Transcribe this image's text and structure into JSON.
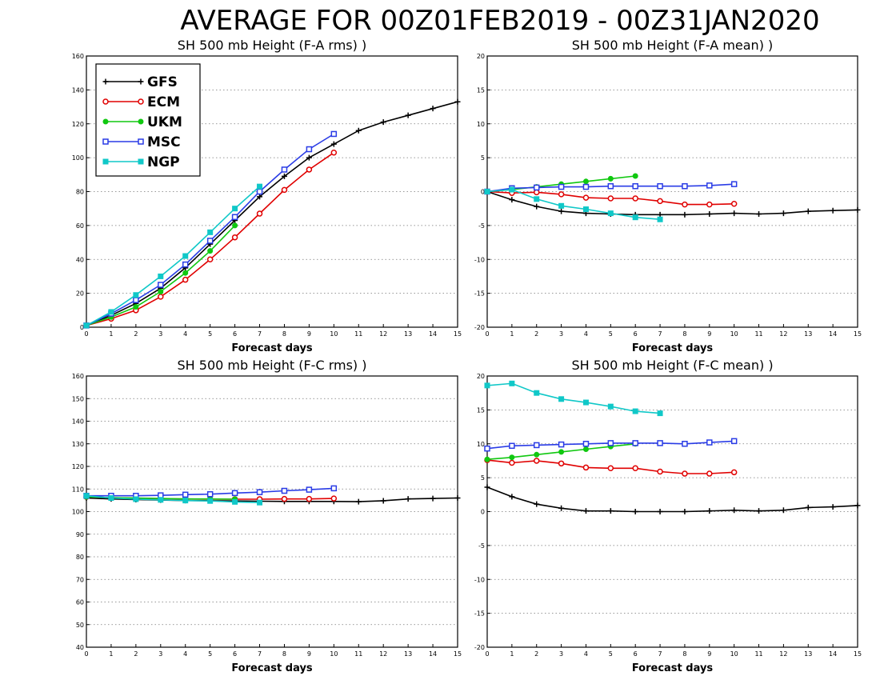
{
  "title": "AVERAGE FOR 00Z01FEB2019 - 00Z31JAN2020",
  "colors": {
    "GFS": "#000000",
    "ECM": "#e00000",
    "UKM": "#10c810",
    "MSC": "#2a3ce6",
    "NGP": "#10c8c8"
  },
  "markers": {
    "GFS": "plus",
    "ECM": "circle-open",
    "UKM": "circle-filled",
    "MSC": "square-open",
    "NGP": "square-filled"
  },
  "legend": [
    "GFS",
    "ECM",
    "UKM",
    "MSC",
    "NGP"
  ],
  "chart_data": [
    {
      "type": "line",
      "title": "SH 500 mb Height (F-A rms) )",
      "xlabel": "Forecast days",
      "xlim": [
        0,
        15
      ],
      "ylim": [
        0,
        160
      ],
      "yticks": [
        0,
        20,
        40,
        60,
        80,
        100,
        120,
        140,
        160
      ],
      "grid": "horizontal-dotted",
      "legend_position": "top-left",
      "series": [
        {
          "name": "GFS",
          "x": [
            0,
            1,
            2,
            3,
            4,
            5,
            6,
            7,
            8,
            9,
            10,
            11,
            12,
            13,
            14,
            15
          ],
          "values": [
            1,
            7,
            14,
            23,
            35,
            49,
            63,
            77,
            89,
            100,
            108,
            116,
            121,
            125,
            129,
            133
          ]
        },
        {
          "name": "ECM",
          "x": [
            0,
            1,
            2,
            3,
            4,
            5,
            6,
            7,
            8,
            9,
            10
          ],
          "values": [
            1,
            5,
            10,
            18,
            28,
            40,
            53,
            67,
            81,
            93,
            103
          ]
        },
        {
          "name": "UKM",
          "x": [
            0,
            1,
            2,
            3,
            4,
            5,
            6
          ],
          "values": [
            1,
            6,
            12,
            21,
            32,
            45,
            60
          ]
        },
        {
          "name": "MSC",
          "x": [
            0,
            1,
            2,
            3,
            4,
            5,
            6,
            7,
            8,
            9,
            10
          ],
          "values": [
            1,
            8,
            16,
            25,
            37,
            51,
            65,
            80,
            93,
            105,
            114
          ]
        },
        {
          "name": "NGP",
          "x": [
            0,
            1,
            2,
            3,
            4,
            5,
            6,
            7
          ],
          "values": [
            1,
            9,
            19,
            30,
            42,
            56,
            70,
            83
          ]
        }
      ]
    },
    {
      "type": "line",
      "title": "SH 500 mb Height (F-A mean) )",
      "xlabel": "Forecast days",
      "xlim": [
        0,
        15
      ],
      "ylim": [
        -20,
        20
      ],
      "yticks": [
        -20,
        -15,
        -10,
        -5,
        0,
        5,
        10,
        15,
        20
      ],
      "grid": "horizontal-dotted",
      "series": [
        {
          "name": "GFS",
          "x": [
            0,
            1,
            2,
            3,
            4,
            5,
            6,
            7,
            8,
            9,
            10,
            11,
            12,
            13,
            14,
            15
          ],
          "values": [
            0,
            -1.2,
            -2.2,
            -2.9,
            -3.2,
            -3.3,
            -3.4,
            -3.4,
            -3.4,
            -3.3,
            -3.2,
            -3.3,
            -3.2,
            -2.9,
            -2.8,
            -2.7
          ]
        },
        {
          "name": "ECM",
          "x": [
            0,
            1,
            2,
            3,
            4,
            5,
            6,
            7,
            8,
            9,
            10
          ],
          "values": [
            0,
            -0.2,
            -0.1,
            -0.4,
            -0.9,
            -1.0,
            -1.0,
            -1.4,
            -1.9,
            -1.9,
            -1.8
          ]
        },
        {
          "name": "UKM",
          "x": [
            0,
            1,
            2,
            3,
            4,
            5,
            6
          ],
          "values": [
            0,
            0.3,
            0.7,
            1.1,
            1.5,
            1.9,
            2.3
          ]
        },
        {
          "name": "MSC",
          "x": [
            0,
            1,
            2,
            3,
            4,
            5,
            6,
            7,
            8,
            9,
            10
          ],
          "values": [
            0,
            0.5,
            0.6,
            0.7,
            0.7,
            0.8,
            0.8,
            0.8,
            0.8,
            0.9,
            1.1
          ]
        },
        {
          "name": "NGP",
          "x": [
            0,
            1,
            2,
            3,
            4,
            5,
            6,
            7
          ],
          "values": [
            0,
            0.3,
            -1.1,
            -2.1,
            -2.6,
            -3.2,
            -3.8,
            -4.1
          ]
        }
      ]
    },
    {
      "type": "line",
      "title": "SH 500 mb Height (F-C rms) )",
      "xlabel": "Forecast days",
      "xlim": [
        0,
        15
      ],
      "ylim": [
        40,
        160
      ],
      "yticks": [
        40,
        50,
        60,
        70,
        80,
        90,
        100,
        110,
        120,
        130,
        140,
        150,
        160
      ],
      "grid": "horizontal-dotted",
      "series": [
        {
          "name": "GFS",
          "x": [
            0,
            1,
            2,
            3,
            4,
            5,
            6,
            7,
            8,
            9,
            10,
            11,
            12,
            13,
            14,
            15
          ],
          "values": [
            106,
            105.6,
            105.3,
            105.1,
            104.9,
            104.8,
            104.7,
            104.6,
            104.5,
            104.5,
            104.5,
            104.4,
            104.8,
            105.6,
            105.8,
            106
          ]
        },
        {
          "name": "ECM",
          "x": [
            0,
            1,
            2,
            3,
            4,
            5,
            6,
            7,
            8,
            9,
            10
          ],
          "values": [
            106.5,
            106.2,
            105.9,
            105.7,
            105.6,
            105.5,
            105.5,
            105.5,
            105.6,
            105.6,
            105.8
          ]
        },
        {
          "name": "UKM",
          "x": [
            0,
            1,
            2,
            3,
            4,
            5,
            6
          ],
          "values": [
            106.5,
            106.2,
            106,
            105.8,
            105.6,
            105.6,
            105.5
          ]
        },
        {
          "name": "MSC",
          "x": [
            0,
            1,
            2,
            3,
            4,
            5,
            6,
            7,
            8,
            9,
            10
          ],
          "values": [
            107,
            107,
            107,
            107.2,
            107.5,
            107.7,
            108.2,
            108.6,
            109.2,
            109.7,
            110.3
          ]
        },
        {
          "name": "NGP",
          "x": [
            0,
            1,
            2,
            3,
            4,
            5,
            6,
            7
          ],
          "values": [
            107,
            106,
            105.5,
            105.2,
            104.9,
            104.7,
            104.3,
            104
          ]
        }
      ]
    },
    {
      "type": "line",
      "title": "SH 500 mb Height (F-C mean) )",
      "xlabel": "Forecast days",
      "xlim": [
        0,
        15
      ],
      "ylim": [
        -20,
        20
      ],
      "yticks": [
        -20,
        -15,
        -10,
        -5,
        0,
        5,
        10,
        15,
        20
      ],
      "grid": "horizontal-dotted",
      "series": [
        {
          "name": "GFS",
          "x": [
            0,
            1,
            2,
            3,
            4,
            5,
            6,
            7,
            8,
            9,
            10,
            11,
            12,
            13,
            14,
            15
          ],
          "values": [
            3.6,
            2.2,
            1.1,
            0.5,
            0.1,
            0.1,
            0,
            0,
            0,
            0.1,
            0.2,
            0.1,
            0.2,
            0.6,
            0.7,
            0.9
          ]
        },
        {
          "name": "ECM",
          "x": [
            0,
            1,
            2,
            3,
            4,
            5,
            6,
            7,
            8,
            9,
            10
          ],
          "values": [
            7.6,
            7.2,
            7.5,
            7.1,
            6.5,
            6.4,
            6.4,
            5.9,
            5.6,
            5.6,
            5.8
          ]
        },
        {
          "name": "UKM",
          "x": [
            0,
            1,
            2,
            3,
            4,
            5,
            6
          ],
          "values": [
            7.7,
            8.0,
            8.4,
            8.8,
            9.2,
            9.6,
            10.0
          ]
        },
        {
          "name": "MSC",
          "x": [
            0,
            1,
            2,
            3,
            4,
            5,
            6,
            7,
            8,
            9,
            10
          ],
          "values": [
            9.3,
            9.7,
            9.8,
            9.9,
            10.0,
            10.1,
            10.1,
            10.1,
            10.0,
            10.2,
            10.4
          ]
        },
        {
          "name": "NGP",
          "x": [
            0,
            1,
            2,
            3,
            4,
            5,
            6,
            7
          ],
          "values": [
            18.6,
            18.9,
            17.5,
            16.6,
            16.1,
            15.5,
            14.8,
            14.5
          ]
        }
      ]
    }
  ]
}
